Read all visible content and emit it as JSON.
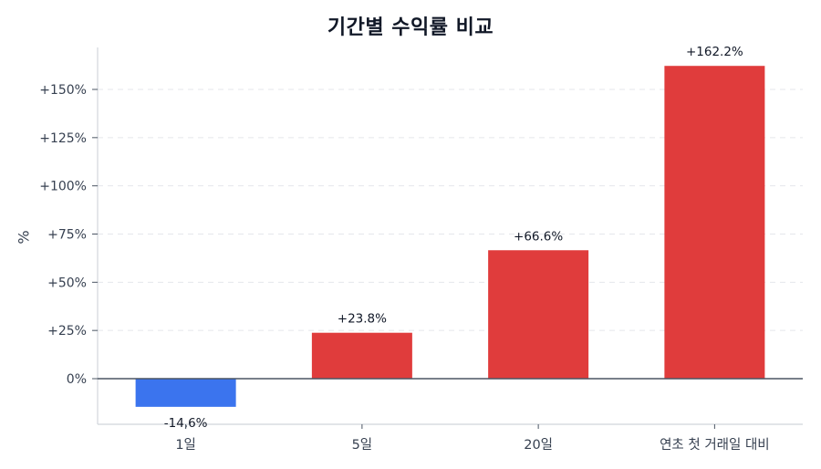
{
  "chart_data": {
    "type": "bar",
    "title": "기간별 수익률 비교",
    "xlabel": "",
    "ylabel": "%",
    "categories": [
      "1일",
      "5일",
      "20일",
      "연초 첫 거래일 대비"
    ],
    "values": [
      -14.6,
      23.8,
      66.6,
      162.2
    ],
    "value_labels": [
      "-14,6%",
      "+23.8%",
      "+66.6%",
      "+162.2%"
    ],
    "colors": [
      "#3b74ee",
      "#e03c3c",
      "#e03c3c",
      "#e03c3c"
    ],
    "yticks": [
      0,
      25,
      50,
      75,
      100,
      125,
      150
    ],
    "ytick_labels": [
      "0%",
      "+25%",
      "+50%",
      "+75%",
      "+100%",
      "+125%",
      "+150%"
    ],
    "ylim": [
      -23.6,
      172
    ],
    "grid": "horizontal dashed",
    "legend": null,
    "zero_line_color": "#4b5563",
    "positive_color": "#e03c3c",
    "negative_color": "#3b74ee"
  }
}
